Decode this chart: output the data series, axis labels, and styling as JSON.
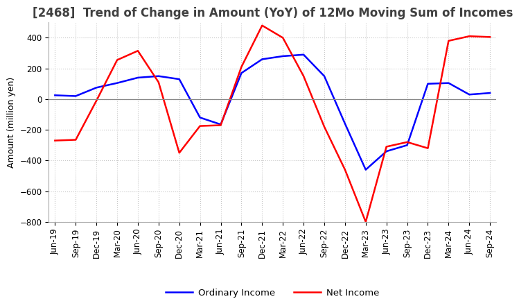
{
  "title": "[2468]  Trend of Change in Amount (YoY) of 12Mo Moving Sum of Incomes",
  "ylabel": "Amount (million yen)",
  "ylim": [
    -800,
    500
  ],
  "yticks": [
    -800,
    -600,
    -400,
    -200,
    0,
    200,
    400
  ],
  "x_labels": [
    "Jun-19",
    "Sep-19",
    "Dec-19",
    "Mar-20",
    "Jun-20",
    "Sep-20",
    "Dec-20",
    "Mar-21",
    "Jun-21",
    "Sep-21",
    "Dec-21",
    "Mar-22",
    "Jun-22",
    "Sep-22",
    "Dec-22",
    "Mar-23",
    "Jun-23",
    "Sep-23",
    "Dec-23",
    "Mar-24",
    "Jun-24",
    "Sep-24"
  ],
  "ordinary_income": [
    25,
    20,
    75,
    105,
    140,
    150,
    130,
    -120,
    -165,
    170,
    260,
    280,
    290,
    150,
    -160,
    -460,
    -340,
    -300,
    100,
    105,
    30,
    40
  ],
  "net_income": [
    -270,
    -265,
    -10,
    255,
    315,
    110,
    -350,
    -175,
    -170,
    210,
    480,
    400,
    150,
    -180,
    -460,
    -800,
    -310,
    -280,
    -320,
    380,
    410,
    405
  ],
  "ordinary_color": "#0000ff",
  "net_color": "#ff0000",
  "grid_color": "#c8c8c8",
  "background_color": "#ffffff",
  "title_fontsize": 12,
  "label_fontsize": 9,
  "tick_fontsize": 8.5
}
